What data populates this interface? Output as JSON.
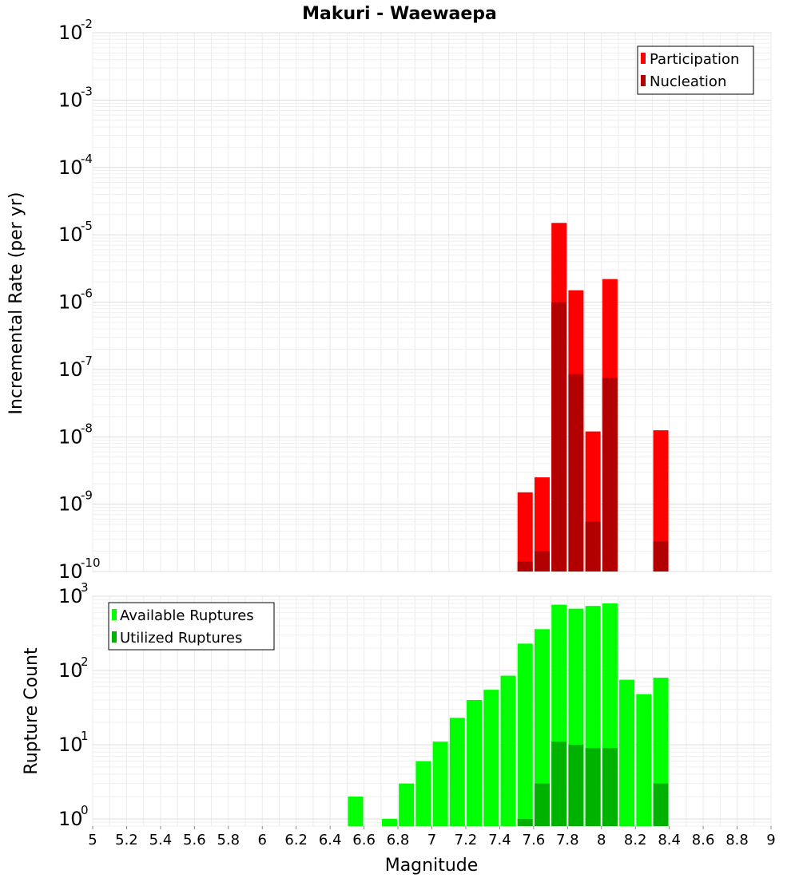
{
  "chart_data": [
    {
      "type": "bar",
      "title": "Makuri - Waewaepa",
      "xlabel": "Magnitude",
      "ylabel": "Incremental Rate (per yr)",
      "yscale": "log",
      "ylim": [
        1e-10,
        0.01
      ],
      "xlim": [
        5,
        9
      ],
      "grid": true,
      "legend_position": "top-right",
      "ytick_exponents": [
        "-10",
        "-9",
        "-8",
        "-7",
        "-6",
        "-5",
        "-4",
        "-3",
        "-2"
      ],
      "series": [
        {
          "name": "Participation",
          "color": "#ff0000",
          "x": [
            7.55,
            7.65,
            7.75,
            7.85,
            7.95,
            8.05,
            8.35
          ],
          "values": [
            1.5e-09,
            2.5e-09,
            1.5e-05,
            1.5e-06,
            1.2e-08,
            2.2e-06,
            1.25e-08
          ]
        },
        {
          "name": "Nucleation",
          "color": "#b20000",
          "x": [
            7.55,
            7.65,
            7.75,
            7.85,
            7.95,
            8.05,
            8.35
          ],
          "values": [
            1.4e-10,
            2e-10,
            1e-06,
            8.5e-08,
            5.5e-10,
            7.5e-08,
            2.8e-10
          ]
        }
      ]
    },
    {
      "type": "bar",
      "xlabel": "Magnitude",
      "ylabel": "Rupture Count",
      "yscale": "log",
      "ylim": [
        0.8,
        1000
      ],
      "xlim": [
        5,
        9
      ],
      "grid": true,
      "legend_position": "top-left",
      "ytick_exponents": [
        "0",
        "1",
        "2",
        "3"
      ],
      "xticks": [
        "5",
        "5.2",
        "5.4",
        "5.6",
        "5.8",
        "6",
        "6.2",
        "6.4",
        "6.6",
        "6.8",
        "7",
        "7.2",
        "7.4",
        "7.6",
        "7.8",
        "8",
        "8.2",
        "8.4",
        "8.6",
        "8.8",
        "9"
      ],
      "series": [
        {
          "name": "Available Ruptures",
          "color": "#00ff00",
          "x": [
            6.55,
            6.75,
            6.85,
            6.95,
            7.05,
            7.15,
            7.25,
            7.35,
            7.45,
            7.55,
            7.65,
            7.75,
            7.85,
            7.95,
            8.05,
            8.15,
            8.25,
            8.35
          ],
          "values": [
            2,
            1,
            3,
            6,
            11,
            23,
            40,
            55,
            85,
            230,
            360,
            770,
            680,
            740,
            800,
            75,
            48,
            80
          ]
        },
        {
          "name": "Utilized Ruptures",
          "color": "#00b200",
          "x": [
            7.55,
            7.65,
            7.75,
            7.85,
            7.95,
            8.05,
            8.35
          ],
          "values": [
            1,
            3,
            11,
            10,
            9,
            9,
            3
          ]
        }
      ]
    }
  ]
}
